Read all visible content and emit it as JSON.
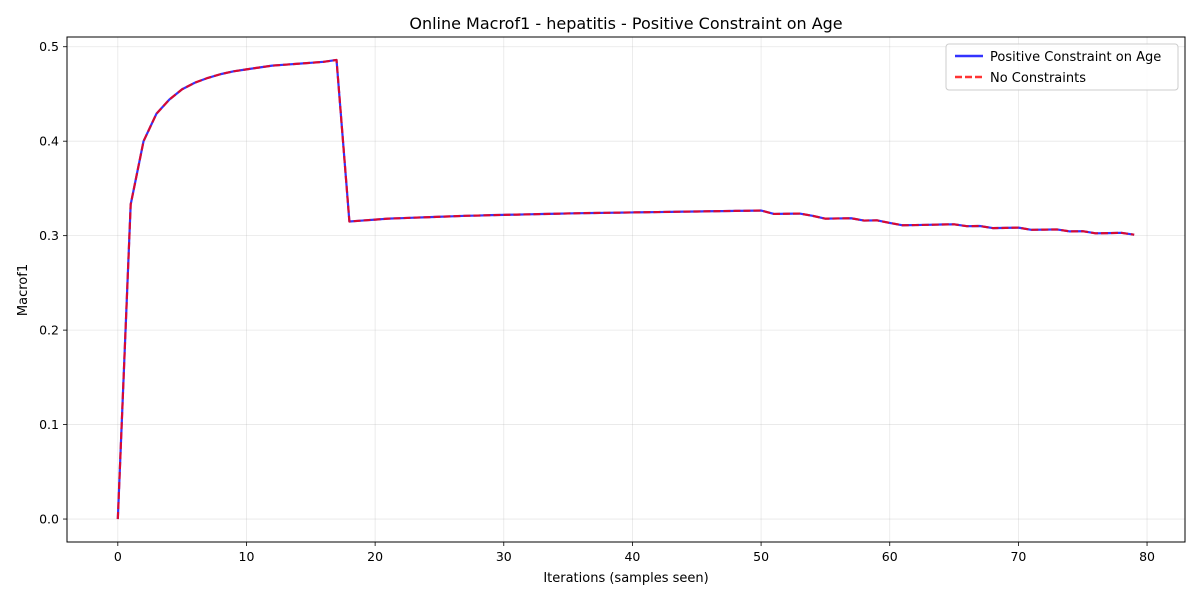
{
  "chart_data": {
    "type": "line",
    "title": "Online Macrof1 - hepatitis - Positive Constraint on Age",
    "xlabel": "Iterations (samples seen)",
    "ylabel": "Macrof1",
    "xlim": [
      -3.95,
      82.95
    ],
    "ylim": [
      -0.0243,
      0.5103
    ],
    "xticks": [
      0,
      10,
      20,
      30,
      40,
      50,
      60,
      70,
      80
    ],
    "yticks": [
      0.0,
      0.1,
      0.2,
      0.3,
      0.4,
      0.5
    ],
    "grid": true,
    "legend_position": "top-right",
    "x": [
      0,
      1,
      2,
      3,
      4,
      5,
      6,
      7,
      8,
      9,
      10,
      11,
      12,
      13,
      14,
      15,
      16,
      17,
      18,
      19,
      20,
      21,
      22,
      23,
      24,
      25,
      26,
      27,
      28,
      29,
      30,
      31,
      32,
      33,
      34,
      35,
      36,
      37,
      38,
      39,
      40,
      41,
      42,
      43,
      44,
      45,
      46,
      47,
      48,
      49,
      50,
      51,
      52,
      53,
      54,
      55,
      56,
      57,
      58,
      59,
      60,
      61,
      62,
      63,
      64,
      65,
      66,
      67,
      68,
      69,
      70,
      71,
      72,
      73,
      74,
      75,
      76,
      77,
      78,
      79
    ],
    "series": [
      {
        "name": "Positive Constraint on Age",
        "color": "#0000ff",
        "dash": "solid",
        "values": [
          0.0,
          0.333,
          0.4,
          0.429,
          0.444,
          0.455,
          0.462,
          0.467,
          0.471,
          0.474,
          0.476,
          0.478,
          0.48,
          0.481,
          0.482,
          0.483,
          0.484,
          0.486,
          0.315,
          0.316,
          0.317,
          0.318,
          0.3185,
          0.319,
          0.3195,
          0.32,
          0.3205,
          0.321,
          0.3213,
          0.3217,
          0.322,
          0.3223,
          0.3226,
          0.3229,
          0.3232,
          0.3235,
          0.3238,
          0.324,
          0.3242,
          0.3244,
          0.3246,
          0.3248,
          0.325,
          0.3252,
          0.3254,
          0.3256,
          0.3258,
          0.326,
          0.3262,
          0.3264,
          0.3266,
          0.323,
          0.3232,
          0.3234,
          0.321,
          0.318,
          0.3182,
          0.3184,
          0.316,
          0.3162,
          0.3135,
          0.311,
          0.3112,
          0.3115,
          0.3118,
          0.312,
          0.31,
          0.3102,
          0.308,
          0.3082,
          0.3085,
          0.3062,
          0.3064,
          0.3066,
          0.3045,
          0.3047,
          0.3025,
          0.3027,
          0.303,
          0.301
        ]
      },
      {
        "name": "No Constraints",
        "color": "#ff0000",
        "dash": "dashed",
        "values": [
          0.0,
          0.333,
          0.4,
          0.429,
          0.444,
          0.455,
          0.462,
          0.467,
          0.471,
          0.474,
          0.476,
          0.478,
          0.48,
          0.481,
          0.482,
          0.483,
          0.484,
          0.486,
          0.315,
          0.316,
          0.317,
          0.318,
          0.3185,
          0.319,
          0.3195,
          0.32,
          0.3205,
          0.321,
          0.3213,
          0.3217,
          0.322,
          0.3223,
          0.3226,
          0.3229,
          0.3232,
          0.3235,
          0.3238,
          0.324,
          0.3242,
          0.3244,
          0.3246,
          0.3248,
          0.325,
          0.3252,
          0.3254,
          0.3256,
          0.3258,
          0.326,
          0.3262,
          0.3264,
          0.3266,
          0.323,
          0.3232,
          0.3234,
          0.321,
          0.318,
          0.3182,
          0.3184,
          0.316,
          0.3162,
          0.3135,
          0.311,
          0.3112,
          0.3115,
          0.3118,
          0.312,
          0.31,
          0.3102,
          0.308,
          0.3082,
          0.3085,
          0.3062,
          0.3064,
          0.3066,
          0.3045,
          0.3047,
          0.3025,
          0.3027,
          0.303,
          0.301
        ]
      }
    ]
  }
}
